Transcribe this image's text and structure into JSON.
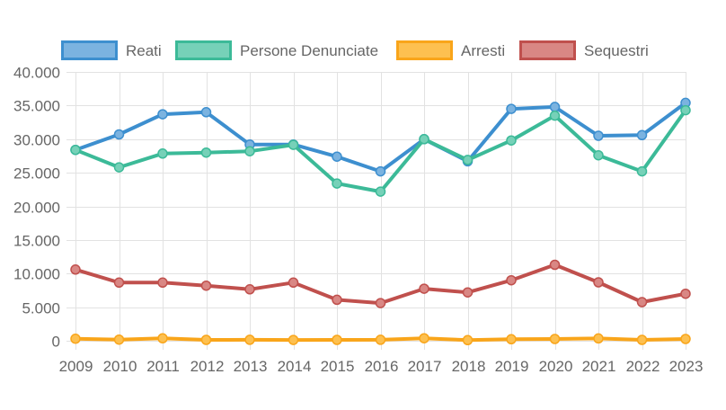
{
  "chart_data": {
    "type": "line",
    "title": "",
    "xlabel": "",
    "ylabel": "",
    "ylim": [
      0,
      40000
    ],
    "y_ticks": [
      0,
      5000,
      10000,
      15000,
      20000,
      25000,
      30000,
      35000,
      40000
    ],
    "y_tick_labels": [
      "0",
      "5.000",
      "10.000",
      "15.000",
      "20.000",
      "25.000",
      "30.000",
      "35.000",
      "40.000"
    ],
    "grid": true,
    "legend_position": "top",
    "categories": [
      "2009",
      "2010",
      "2011",
      "2012",
      "2013",
      "2014",
      "2015",
      "2016",
      "2017",
      "2018",
      "2019",
      "2020",
      "2021",
      "2022",
      "2023"
    ],
    "series": [
      {
        "name": "Reati",
        "color": "#3d8fcf",
        "fill": "#7bb3e0",
        "values": [
          28400,
          30700,
          33700,
          34000,
          29200,
          29200,
          27400,
          25200,
          30000,
          26700,
          34500,
          34800,
          30500,
          30600,
          35400
        ]
      },
      {
        "name": "Persone Denunciate",
        "color": "#3cba98",
        "fill": "#76d1b8",
        "values": [
          28400,
          25800,
          27850,
          28000,
          28200,
          29150,
          23400,
          22200,
          30000,
          26900,
          29800,
          33500,
          27600,
          25200,
          34300
        ]
      },
      {
        "name": "Arresti",
        "color": "#f9a51a",
        "fill": "#fdc050",
        "values": [
          300,
          180,
          360,
          130,
          150,
          120,
          140,
          150,
          370,
          100,
          230,
          270,
          350,
          130,
          270
        ]
      },
      {
        "name": "Sequestri",
        "color": "#c0504d",
        "fill": "#d98784",
        "values": [
          10600,
          8650,
          8650,
          8200,
          7650,
          8650,
          6100,
          5600,
          7750,
          7200,
          9000,
          11300,
          8700,
          5750,
          7000
        ]
      }
    ]
  }
}
